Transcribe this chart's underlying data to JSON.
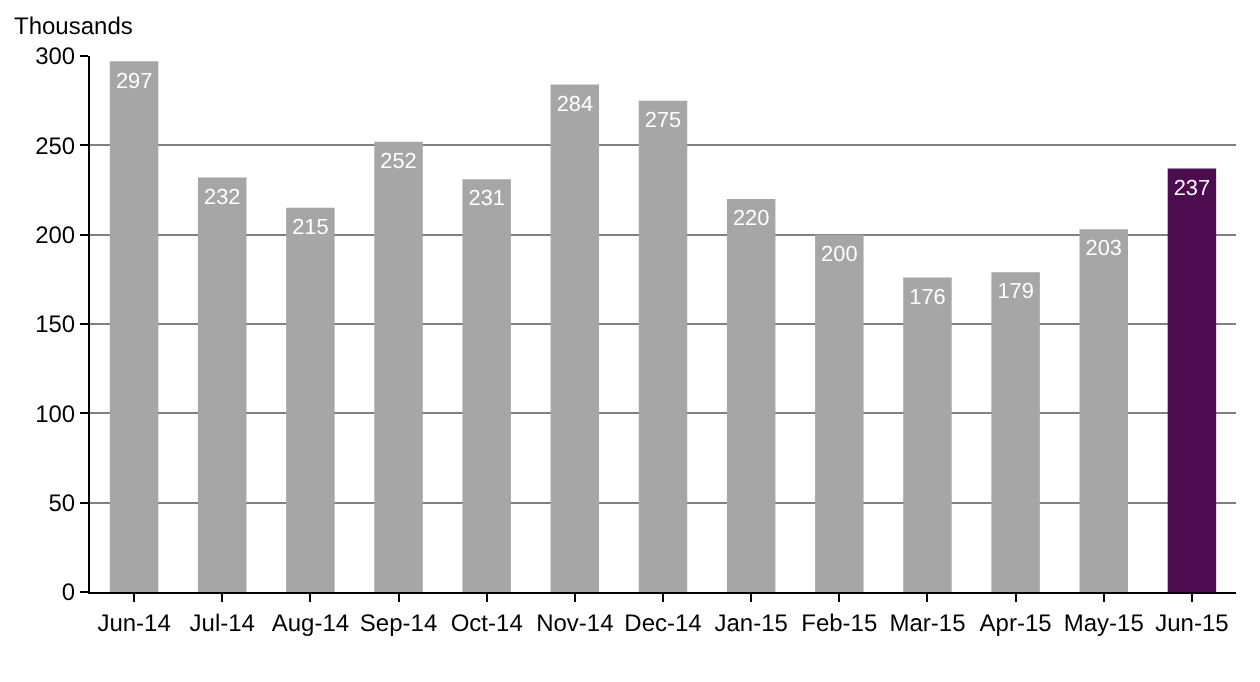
{
  "chart_data": {
    "type": "bar",
    "ylabel": "Thousands",
    "categories": [
      "Jun-14",
      "Jul-14",
      "Aug-14",
      "Sep-14",
      "Oct-14",
      "Nov-14",
      "Dec-14",
      "Jan-15",
      "Feb-15",
      "Mar-15",
      "Apr-15",
      "May-15",
      "Jun-15"
    ],
    "values": [
      297,
      232,
      215,
      252,
      231,
      284,
      275,
      220,
      200,
      176,
      179,
      203,
      237
    ],
    "colors": [
      "#a6a6a6",
      "#a6a6a6",
      "#a6a6a6",
      "#a6a6a6",
      "#a6a6a6",
      "#a6a6a6",
      "#a6a6a6",
      "#a6a6a6",
      "#a6a6a6",
      "#a6a6a6",
      "#a6a6a6",
      "#a6a6a6",
      "#4d0c4f"
    ],
    "ylim": [
      0,
      300
    ],
    "yticks": [
      0,
      50,
      100,
      150,
      200,
      250,
      300
    ],
    "grid": "y",
    "data_labels": true,
    "legend": false
  }
}
